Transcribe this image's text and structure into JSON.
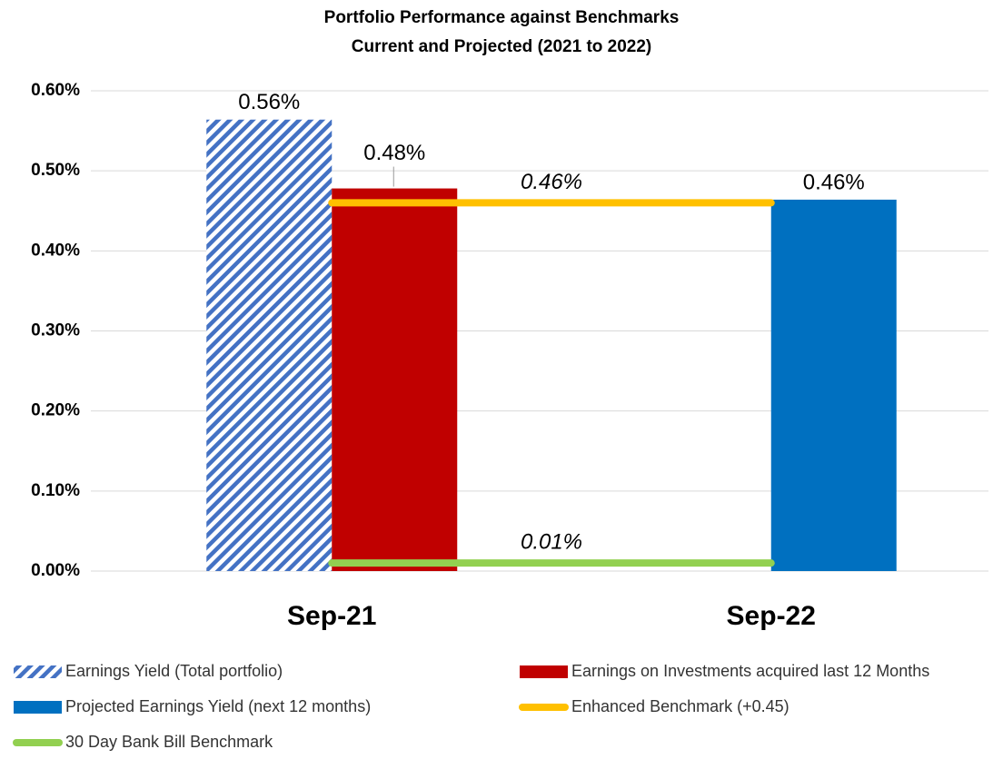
{
  "chart_data": {
    "type": "bar",
    "title": "Portfolio Performance against Benchmarks",
    "subtitle": "Current and Projected (2021 to 2022)",
    "categories": [
      "Sep-21",
      "Sep-22"
    ],
    "ylim": [
      0,
      0.6
    ],
    "yticks": [
      {
        "value": 0,
        "label": "0.00%"
      },
      {
        "value": 0.1,
        "label": "0.10%"
      },
      {
        "value": 0.2,
        "label": "0.20%"
      },
      {
        "value": 0.3,
        "label": "0.30%"
      },
      {
        "value": 0.4,
        "label": "0.40%"
      },
      {
        "value": 0.5,
        "label": "0.50%"
      },
      {
        "value": 0.6,
        "label": "0.60%"
      }
    ],
    "grid": true,
    "series": [
      {
        "name": "Earnings Yield (Total portfolio)",
        "type": "bar",
        "hatch": true,
        "color": "#4472c4",
        "values": [
          0.564,
          null
        ],
        "value_labels": [
          "0.56%",
          null
        ]
      },
      {
        "name": "Earnings on Investments acquired last 12 Months",
        "type": "bar",
        "color": "#c00000",
        "values": [
          0.478,
          null
        ],
        "value_labels": [
          "0.48%",
          null
        ]
      },
      {
        "name": "Projected Earnings Yield (next 12 months)",
        "type": "bar",
        "color": "#0070c0",
        "values": [
          null,
          0.464
        ],
        "value_labels": [
          null,
          "0.46%"
        ]
      },
      {
        "name": "Enhanced Benchmark (+0.45)",
        "type": "line",
        "color": "#ffc000",
        "values": [
          0.46,
          0.46
        ],
        "value_labels": [
          null,
          "0.46%"
        ]
      },
      {
        "name": "30 Day Bank Bill Benchmark",
        "type": "line",
        "color": "#92d050",
        "values": [
          0.01,
          0.01
        ],
        "value_labels": [
          null,
          "0.01%"
        ]
      }
    ]
  }
}
